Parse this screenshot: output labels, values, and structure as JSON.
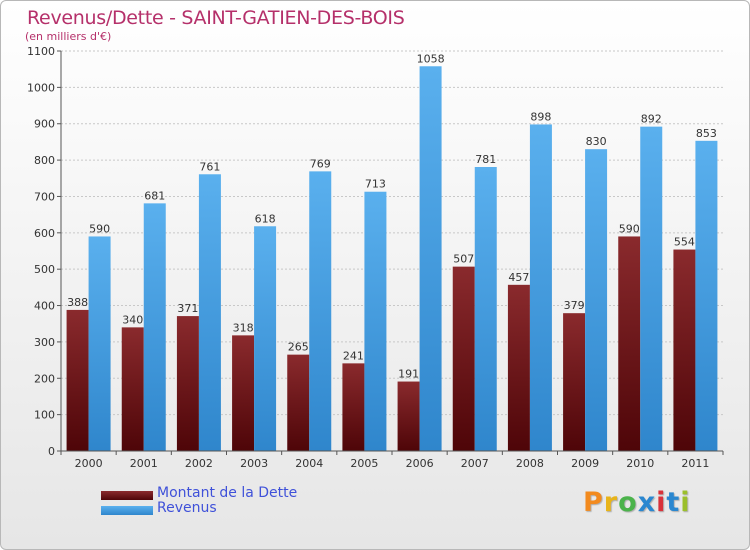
{
  "header": {
    "title": "Revenus/Dette - SAINT-GATIEN-DES-BOIS",
    "subtitle": "(en milliers d'€)"
  },
  "colors": {
    "dette": "#6b0f12",
    "revenus": "#4aa3e6",
    "title": "#b5306a",
    "legend_text": "#3f51d9"
  },
  "legend": {
    "dette_label": "Montant de la Dette",
    "revenus_label": "Revenus"
  },
  "logo": {
    "text": "Proxiti",
    "letter_colors": [
      "#f28a1e",
      "#e8b41a",
      "#4bb34b",
      "#2a87d0",
      "#d9323a",
      "#2a87d0",
      "#9bbf2b"
    ]
  },
  "chart_data": {
    "type": "bar",
    "categories": [
      "2000",
      "2001",
      "2002",
      "2003",
      "2004",
      "2005",
      "2006",
      "2007",
      "2008",
      "2009",
      "2010",
      "2011"
    ],
    "series": [
      {
        "name": "Montant de la Dette",
        "values": [
          388,
          340,
          371,
          318,
          265,
          241,
          191,
          507,
          457,
          379,
          590,
          554
        ]
      },
      {
        "name": "Revenus",
        "values": [
          590,
          681,
          761,
          618,
          769,
          713,
          1058,
          781,
          898,
          830,
          892,
          853
        ]
      }
    ],
    "ylim": [
      0,
      1100
    ],
    "yticks": [
      0,
      100,
      200,
      300,
      400,
      500,
      600,
      700,
      800,
      900,
      1000,
      1100
    ],
    "grid": true,
    "legend_position": "bottom-left"
  }
}
